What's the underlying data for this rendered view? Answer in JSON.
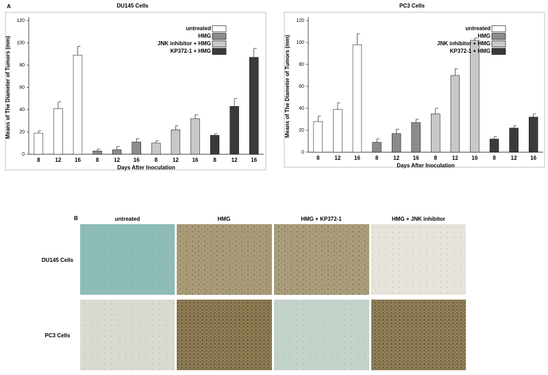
{
  "panel_a": {
    "label": "A"
  },
  "chart_data": [
    {
      "type": "bar",
      "title": "DU145 Cells",
      "xlabel": "Days After Inoculation",
      "ylabel": "Means of The Diameter of Tumors (mm)",
      "categories": [
        "8",
        "12",
        "16"
      ],
      "ylim": [
        0,
        120
      ],
      "yticks": [
        0,
        20,
        40,
        60,
        80,
        100,
        120
      ],
      "legend": "upper right",
      "series": [
        {
          "name": "untreated",
          "color": "#ffffff",
          "values": [
            19,
            41,
            89
          ],
          "errors": [
            2,
            6,
            8
          ]
        },
        {
          "name": "HMG",
          "color": "#8c8c8c",
          "values": [
            3,
            4,
            11
          ],
          "errors": [
            1.5,
            3,
            3
          ]
        },
        {
          "name": "JNK inhibitor + HMG",
          "color": "#c8c8c8",
          "values": [
            10,
            22,
            32
          ],
          "errors": [
            2,
            3.5,
            3.5
          ]
        },
        {
          "name": "KP372-1 + HMG",
          "color": "#3a3a3a",
          "values": [
            17,
            43,
            87
          ],
          "errors": [
            1.5,
            7,
            8
          ]
        }
      ]
    },
    {
      "type": "bar",
      "title": "PC3 Cells",
      "xlabel": "Days After Inoculation",
      "ylabel": "Means of The Diameter of Tumors (mm)",
      "categories": [
        "8",
        "12",
        "16"
      ],
      "ylim": [
        0,
        120
      ],
      "yticks": [
        0,
        20,
        40,
        60,
        80,
        100,
        120
      ],
      "legend": "upper right",
      "series": [
        {
          "name": "untreated",
          "color": "#ffffff",
          "values": [
            28,
            39,
            98
          ],
          "errors": [
            5,
            6,
            10
          ]
        },
        {
          "name": "HMG",
          "color": "#8c8c8c",
          "values": [
            9,
            17,
            27
          ],
          "errors": [
            3,
            4,
            3
          ]
        },
        {
          "name": "JNK inhibitor + HMG",
          "color": "#c8c8c8",
          "values": [
            35,
            70,
            102
          ],
          "errors": [
            5,
            6,
            2
          ]
        },
        {
          "name": "KP372-1 + HMG",
          "color": "#3a3a3a",
          "values": [
            12,
            22,
            32
          ],
          "errors": [
            2,
            2,
            3
          ]
        }
      ]
    }
  ],
  "panel_b": {
    "label": "B",
    "columns": [
      "untreated",
      "HMG",
      "HMG + KP372-1",
      "HMG + JNK inhibitor"
    ],
    "rows": [
      "DU145 Cells",
      "PC3 Cells"
    ]
  }
}
